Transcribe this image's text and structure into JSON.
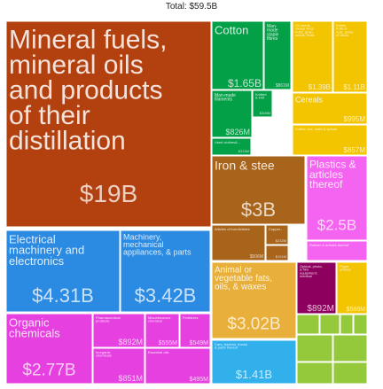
{
  "chart_data": {
    "type": "treemap",
    "title": "Total: $59.5B",
    "items": [
      {
        "id": "mineral-fuels",
        "label": "Mineral fuels, mineral oils and products of their distillation",
        "value_label": "$19B",
        "value": 19.0,
        "color": "#b2410f"
      },
      {
        "id": "cotton",
        "label": "Cotton",
        "value_label": "$1.65B",
        "value": 1.65,
        "color": "#04a048"
      },
      {
        "id": "man-made-staple-fibres",
        "label": "Man-made staple fibres",
        "value_label": "$861M",
        "value": 0.861,
        "color": "#04a048"
      },
      {
        "id": "man-made-filaments",
        "label": "Man-made filaments",
        "value_label": "$826M",
        "value": 0.826,
        "color": "#04a048"
      },
      {
        "id": "knitted-fabrics",
        "label": "Knitted & knit",
        "value_label": "$306M",
        "value": 0.306,
        "color": "#04a048"
      },
      {
        "id": "used-clothing",
        "label": "Used clothes&...",
        "value_label": "$315M",
        "value": 0.315,
        "color": "#04a048"
      },
      {
        "id": "oil-seeds",
        "label": "Oil seeds, oleagi nous fruits, grain, seeds, fruits & medical plants",
        "value_label": "$1.39B",
        "value": 1.39,
        "color": "#f3c400"
      },
      {
        "id": "edible-fruit",
        "label": "Edible fruits & nuts, peels of citrus fruit or melons",
        "value_label": "$1.11B",
        "value": 1.11,
        "color": "#f3c400"
      },
      {
        "id": "cereals",
        "label": "Cereals",
        "value_label": "$995M",
        "value": 0.995,
        "color": "#f3c400"
      },
      {
        "id": "coffee-tea",
        "label": "Coffee, tea, mate & spices",
        "value_label": "$857M",
        "value": 0.857,
        "color": "#f3c400"
      },
      {
        "id": "iron-steel",
        "label": "Iron & steel",
        "value_label": "$3B",
        "value": 3.0,
        "color": "#a8641a"
      },
      {
        "id": "articles-iron-steel",
        "label": "Articles of iron or steel",
        "value_label": "$506M",
        "value": 0.506,
        "color": "#a8641a"
      },
      {
        "id": "copper",
        "label": "Copper and articles thereof",
        "value_label": "$232M",
        "value": 0.232,
        "color": "#a8641a"
      },
      {
        "id": "other-metals",
        "label": "Tools",
        "value_label": "$191M",
        "value": 0.191,
        "color": "#a8641a"
      },
      {
        "id": "plastics",
        "label": "Plastics & articles thereof",
        "value_label": "$2.5B",
        "value": 2.5,
        "color": "#f464f0"
      },
      {
        "id": "rubber",
        "label": "Rubber & articles thereof",
        "value_label": "",
        "value": 0.5,
        "color": "#f464f0"
      },
      {
        "id": "electrical-machinery",
        "label": "Electrical machinery and electronics",
        "value_label": "$4.31B",
        "value": 4.31,
        "color": "#2b8ae2"
      },
      {
        "id": "machinery",
        "label": "Machinery, mechanical appliances, & parts",
        "value_label": "$3.42B",
        "value": 3.42,
        "color": "#2b8ae2"
      },
      {
        "id": "animal-vegetable-fats",
        "label": "Animal or vegetable fats, oils, & waxes",
        "value_label": "$3.02B",
        "value": 3.02,
        "color": "#e8b03a"
      },
      {
        "id": "optical-photo",
        "label": "Optical, photo, & film equipment; medical",
        "value_label": "$892M",
        "value": 0.892,
        "color": "#8e005d"
      },
      {
        "id": "paper-articles",
        "label": "Paper articles",
        "value_label": "$586M",
        "value": 0.586,
        "color": "#f3c400"
      },
      {
        "id": "organic-chemicals",
        "label": "Organic chemicals",
        "value_label": "$2.77B",
        "value": 2.77,
        "color": "#e640e0"
      },
      {
        "id": "pharmaceutical",
        "label": "Pharmaceutical products",
        "value_label": "$892M",
        "value": 0.892,
        "color": "#e640e0"
      },
      {
        "id": "miscellaneous-chemicals",
        "label": "Miscellaneous chemical products",
        "value_label": "$555M",
        "value": 0.555,
        "color": "#e640e0"
      },
      {
        "id": "fertilizers",
        "label": "Fertilizers",
        "value_label": "$549M",
        "value": 0.549,
        "color": "#e640e0"
      },
      {
        "id": "inorganic-chemicals",
        "label": "Inorganic chemicals",
        "value_label": "$851M",
        "value": 0.851,
        "color": "#e640e0"
      },
      {
        "id": "essential-oils",
        "label": "Essential oils",
        "value_label": "$495M",
        "value": 0.495,
        "color": "#e640e0"
      },
      {
        "id": "cars-trucks",
        "label": "Cars, tractors, trucks & parts thereof",
        "value_label": "$1.41B",
        "value": 1.41,
        "color": "#32b0ec"
      },
      {
        "id": "misc-small",
        "label": "",
        "value_label": "",
        "value": 0.3,
        "color": "#94c93c"
      }
    ]
  }
}
